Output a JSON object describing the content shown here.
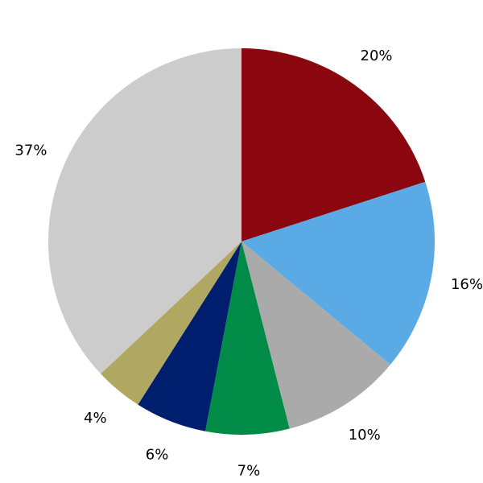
{
  "chart_data": {
    "type": "pie",
    "start": "top",
    "direction": "clockwise",
    "slices": [
      {
        "value": 20,
        "label": "20%",
        "color": "#8B0710"
      },
      {
        "value": 16,
        "label": "16%",
        "color": "#5AAAE6"
      },
      {
        "value": 10,
        "label": "10%",
        "color": "#AAAAAA"
      },
      {
        "value": 7,
        "label": "7%",
        "color": "#008C46"
      },
      {
        "value": 6,
        "label": "6%",
        "color": "#001E6E"
      },
      {
        "value": 4,
        "label": "4%",
        "color": "#B0A862"
      },
      {
        "value": 37,
        "label": "37%",
        "color": "#CCCCCC"
      }
    ]
  }
}
